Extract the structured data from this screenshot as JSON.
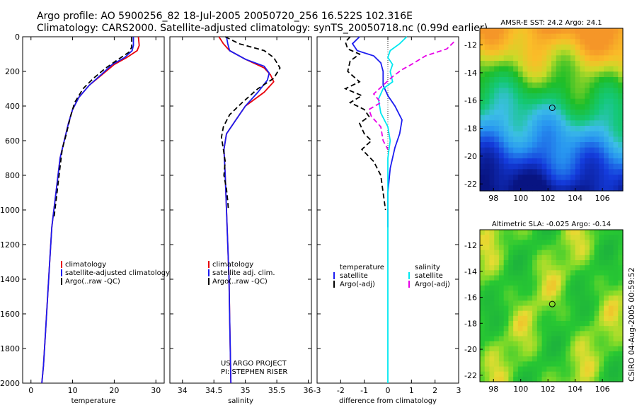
{
  "header": {
    "line1": "Argo profile: AO 5900256_82 18-Jul-2005 20050720_256 16.522S 102.316E",
    "line2": "Climatology: CARS2000. Satellite-adjusted climatology: synTS_20050718.nc (0.99d earlier)"
  },
  "side_label": "CSIRO 04-Aug-2005 00:59:52",
  "colors": {
    "climatology": "#e8000b",
    "satellite": "#1c1cf0",
    "argo": "#000000",
    "sal_sat": "#00e8f0",
    "sal_argo": "#e800e8"
  },
  "chart_data": [
    {
      "type": "line",
      "name": "temperature-profile",
      "xlabel": "temperature",
      "xlim": [
        -2,
        32
      ],
      "ylim": [
        2000,
        0
      ],
      "xticks": [
        0,
        10,
        20,
        30
      ],
      "yticks": [
        0,
        200,
        400,
        600,
        800,
        1000,
        1200,
        1400,
        1600,
        1800,
        2000
      ],
      "legend": {
        "position": "center-right",
        "entries": [
          "climatology",
          "satellite-adjusted climatology",
          "Argo(..raw -QC)"
        ]
      },
      "series": [
        {
          "name": "climatology",
          "color": "#e8000b",
          "dash": "",
          "points": [
            [
              25.8,
              0
            ],
            [
              26,
              50
            ],
            [
              25.5,
              80
            ],
            [
              23,
              120
            ],
            [
              20,
              160
            ],
            [
              17,
              220
            ],
            [
              14,
              280
            ],
            [
              11.5,
              350
            ],
            [
              10,
              420
            ],
            [
              9,
              500
            ],
            [
              8,
              600
            ],
            [
              7,
              700
            ],
            [
              6.5,
              800
            ],
            [
              6,
              900
            ],
            [
              5.5,
              1000
            ],
            [
              5,
              1100
            ],
            [
              4.5,
              1300
            ],
            [
              4,
              1500
            ],
            [
              3.5,
              1700
            ],
            [
              3,
              1900
            ],
            [
              2.6,
              2000
            ]
          ]
        },
        {
          "name": "satellite-adjusted climatology",
          "color": "#1c1cf0",
          "dash": "",
          "points": [
            [
              24.6,
              0
            ],
            [
              24.6,
              50
            ],
            [
              24.3,
              80
            ],
            [
              22.5,
              120
            ],
            [
              19.5,
              160
            ],
            [
              16.8,
              220
            ],
            [
              14,
              280
            ],
            [
              11.5,
              350
            ],
            [
              10,
              420
            ],
            [
              9,
              500
            ],
            [
              8,
              600
            ],
            [
              7,
              700
            ],
            [
              6.5,
              800
            ],
            [
              6,
              900
            ],
            [
              5.5,
              1000
            ],
            [
              5,
              1100
            ],
            [
              4.5,
              1300
            ],
            [
              4,
              1500
            ],
            [
              3.5,
              1700
            ],
            [
              3,
              1900
            ],
            [
              2.6,
              2000
            ]
          ]
        },
        {
          "name": "Argo(..raw -QC)",
          "color": "#000000",
          "dash": "7,4",
          "points": [
            [
              24.2,
              0
            ],
            [
              24.2,
              60
            ],
            [
              23.5,
              90
            ],
            [
              21,
              130
            ],
            [
              18,
              180
            ],
            [
              15,
              240
            ],
            [
              12.5,
              300
            ],
            [
              10.5,
              380
            ],
            [
              9.5,
              460
            ],
            [
              8.5,
              560
            ],
            [
              7.5,
              650
            ],
            [
              7,
              750
            ],
            [
              6.5,
              850
            ],
            [
              6,
              950
            ],
            [
              5.5,
              1050
            ]
          ]
        }
      ]
    },
    {
      "type": "line",
      "name": "salinity-profile",
      "xlabel": "salinity",
      "xlim": [
        33.8,
        36.05
      ],
      "ylim": [
        2000,
        0
      ],
      "xticks": [
        34,
        34.5,
        35,
        35.5,
        36
      ],
      "legend": {
        "position": "center-right",
        "entries": [
          "climatology",
          "satellite adj. clim.",
          "Argo(..raw -QC)"
        ]
      },
      "annotations": [
        "US ARGO PROJECT",
        "PI: STEPHEN RISER"
      ],
      "series": [
        {
          "name": "climatology",
          "color": "#e8000b",
          "dash": "",
          "points": [
            [
              34.58,
              0
            ],
            [
              34.65,
              40
            ],
            [
              34.75,
              80
            ],
            [
              35.0,
              130
            ],
            [
              35.3,
              180
            ],
            [
              35.4,
              220
            ],
            [
              35.45,
              260
            ],
            [
              35.3,
              320
            ],
            [
              35.0,
              400
            ],
            [
              34.85,
              480
            ],
            [
              34.7,
              560
            ],
            [
              34.66,
              650
            ],
            [
              34.68,
              800
            ],
            [
              34.7,
              1000
            ],
            [
              34.72,
              1200
            ],
            [
              34.74,
              1400
            ],
            [
              34.75,
              1600
            ],
            [
              34.76,
              1800
            ],
            [
              34.77,
              2000
            ]
          ]
        },
        {
          "name": "satellite adj. clim.",
          "color": "#1c1cf0",
          "dash": "",
          "points": [
            [
              34.7,
              0
            ],
            [
              34.72,
              40
            ],
            [
              34.75,
              80
            ],
            [
              35.0,
              130
            ],
            [
              35.3,
              170
            ],
            [
              35.38,
              210
            ],
            [
              35.35,
              250
            ],
            [
              35.2,
              320
            ],
            [
              35.0,
              400
            ],
            [
              34.85,
              480
            ],
            [
              34.7,
              560
            ],
            [
              34.66,
              650
            ],
            [
              34.68,
              800
            ],
            [
              34.7,
              1000
            ],
            [
              34.72,
              1200
            ],
            [
              34.74,
              1400
            ],
            [
              34.75,
              1600
            ],
            [
              34.76,
              1800
            ],
            [
              34.77,
              2000
            ]
          ]
        },
        {
          "name": "Argo(..raw -QC)",
          "color": "#000000",
          "dash": "7,4",
          "points": [
            [
              34.68,
              0
            ],
            [
              34.9,
              40
            ],
            [
              35.3,
              80
            ],
            [
              35.45,
              120
            ],
            [
              35.55,
              180
            ],
            [
              35.45,
              240
            ],
            [
              35.2,
              300
            ],
            [
              34.95,
              380
            ],
            [
              34.75,
              450
            ],
            [
              34.65,
              520
            ],
            [
              34.62,
              580
            ],
            [
              34.65,
              650
            ],
            [
              34.68,
              720
            ],
            [
              34.66,
              800
            ],
            [
              34.7,
              880
            ],
            [
              34.72,
              950
            ],
            [
              34.73,
              1000
            ]
          ]
        }
      ]
    },
    {
      "type": "line",
      "name": "difference-profile",
      "xlabel": "difference from climatology",
      "xlim": [
        -3,
        3
      ],
      "ylim": [
        2000,
        0
      ],
      "xticks": [
        -3,
        -2,
        -1,
        0,
        1,
        2,
        3
      ],
      "legend": {
        "position": "center",
        "groups": [
          "temperature",
          "salinity"
        ],
        "entries": [
          "satellite",
          "Argo(-adj)",
          "satellite",
          "Argo(-adj)"
        ]
      },
      "series": [
        {
          "name": "temperature satellite",
          "color": "#1c1cf0",
          "dash": "",
          "points": [
            [
              -1.2,
              0
            ],
            [
              -1.5,
              40
            ],
            [
              -1.3,
              80
            ],
            [
              -0.6,
              110
            ],
            [
              -0.3,
              150
            ],
            [
              -0.2,
              200
            ],
            [
              -0.2,
              280
            ],
            [
              0,
              340
            ],
            [
              0.3,
              400
            ],
            [
              0.6,
              480
            ],
            [
              0.5,
              560
            ],
            [
              0.3,
              640
            ],
            [
              0.1,
              760
            ],
            [
              0,
              900
            ],
            [
              0,
              1000
            ],
            [
              0,
              1100
            ]
          ]
        },
        {
          "name": "temperature Argo(-adj)",
          "color": "#000000",
          "dash": "7,4",
          "points": [
            [
              -1.6,
              0
            ],
            [
              -1.8,
              30
            ],
            [
              -1.7,
              70
            ],
            [
              -1.2,
              100
            ],
            [
              -1.6,
              140
            ],
            [
              -1.7,
              200
            ],
            [
              -1.2,
              260
            ],
            [
              -1.8,
              300
            ],
            [
              -1.1,
              340
            ],
            [
              -1.6,
              380
            ],
            [
              -1.0,
              420
            ],
            [
              -0.8,
              460
            ],
            [
              -1.2,
              500
            ],
            [
              -1.0,
              560
            ],
            [
              -0.7,
              600
            ],
            [
              -1.1,
              650
            ],
            [
              -0.6,
              720
            ],
            [
              -0.3,
              800
            ],
            [
              -0.2,
              900
            ],
            [
              -0.1,
              1000
            ]
          ]
        },
        {
          "name": "salinity satellite",
          "color": "#00e8f0",
          "dash": "",
          "points": [
            [
              0.8,
              0
            ],
            [
              0.5,
              40
            ],
            [
              0.1,
              80
            ],
            [
              0,
              120
            ],
            [
              0.2,
              160
            ],
            [
              0.1,
              200
            ],
            [
              0.2,
              260
            ],
            [
              -0.2,
              300
            ],
            [
              -0.4,
              360
            ],
            [
              -0.3,
              440
            ],
            [
              0,
              520
            ],
            [
              0.1,
              600
            ],
            [
              0,
              700
            ],
            [
              0,
              800
            ],
            [
              0,
              1000
            ],
            [
              0,
              1200
            ],
            [
              0,
              1400
            ],
            [
              0,
              1600
            ],
            [
              0,
              1800
            ],
            [
              0,
              2000
            ]
          ]
        },
        {
          "name": "salinity Argo(-adj)",
          "color": "#e800e8",
          "dash": "7,4",
          "points": [
            [
              2.8,
              30
            ],
            [
              2.5,
              70
            ],
            [
              1.6,
              110
            ],
            [
              1.0,
              160
            ],
            [
              0.6,
              190
            ],
            [
              0.2,
              230
            ],
            [
              -0.2,
              280
            ],
            [
              -0.6,
              330
            ],
            [
              -0.3,
              380
            ],
            [
              -0.8,
              420
            ],
            [
              -0.7,
              460
            ],
            [
              -0.3,
              520
            ],
            [
              -0.2,
              600
            ],
            [
              0,
              650
            ]
          ]
        }
      ]
    },
    {
      "type": "heatmap",
      "name": "amsr-sst-map",
      "title": "AMSR-E SST: 24.2 Argo: 24.1",
      "xlim": [
        97,
        107.5
      ],
      "ylim": [
        -22.5,
        -10.8
      ],
      "xticks": [
        98,
        100,
        102,
        104,
        106
      ],
      "yticks": [
        -12,
        -14,
        -16,
        -18,
        -20,
        -22
      ],
      "marker": [
        102.316,
        -16.522
      ]
    },
    {
      "type": "heatmap",
      "name": "altimetric-sla-map",
      "title": "Altimetric SLA: -0.025 Argo: -0.14",
      "xlim": [
        97,
        107.5
      ],
      "ylim": [
        -22.5,
        -10.8
      ],
      "xticks": [
        98,
        100,
        102,
        104,
        106
      ],
      "yticks": [
        -12,
        -14,
        -16,
        -18,
        -20,
        -22
      ],
      "marker": [
        102.316,
        -16.522
      ]
    }
  ]
}
